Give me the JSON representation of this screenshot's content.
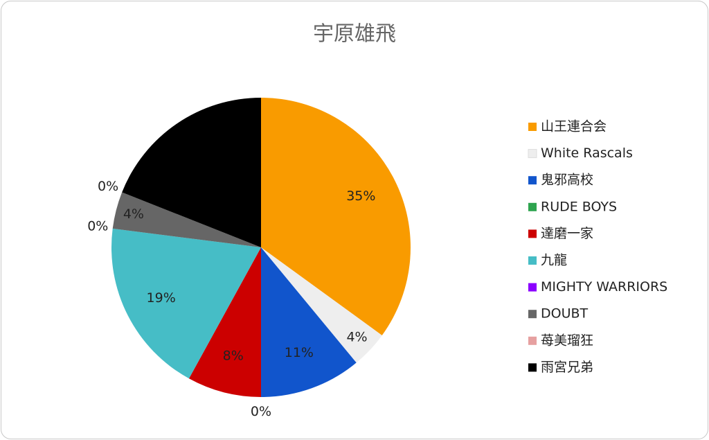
{
  "chart_data": {
    "type": "pie",
    "title": "宇原雄飛",
    "categories": [
      "山王連合会",
      "White Rascals",
      "鬼邪高校",
      "RUDE BOYS",
      "達磨一家",
      "九龍",
      "MIGHTY WARRIORS",
      "DOUBT",
      "苺美瑠狂",
      "雨宮兄弟"
    ],
    "values": [
      35,
      4,
      11,
      0,
      8,
      19,
      0,
      4,
      0,
      19
    ],
    "value_labels": [
      "35%",
      "4%",
      "11%",
      "0%",
      "8%",
      "19%",
      "0%",
      "4%",
      "0%",
      null
    ],
    "colors": [
      "#f99b00",
      "#eeeeee",
      "#1155cc",
      "#2ea44f",
      "#cc0000",
      "#46bdc6",
      "#8b00ff",
      "#666666",
      "#e6a0a0",
      "#000000"
    ],
    "legend": "right"
  }
}
